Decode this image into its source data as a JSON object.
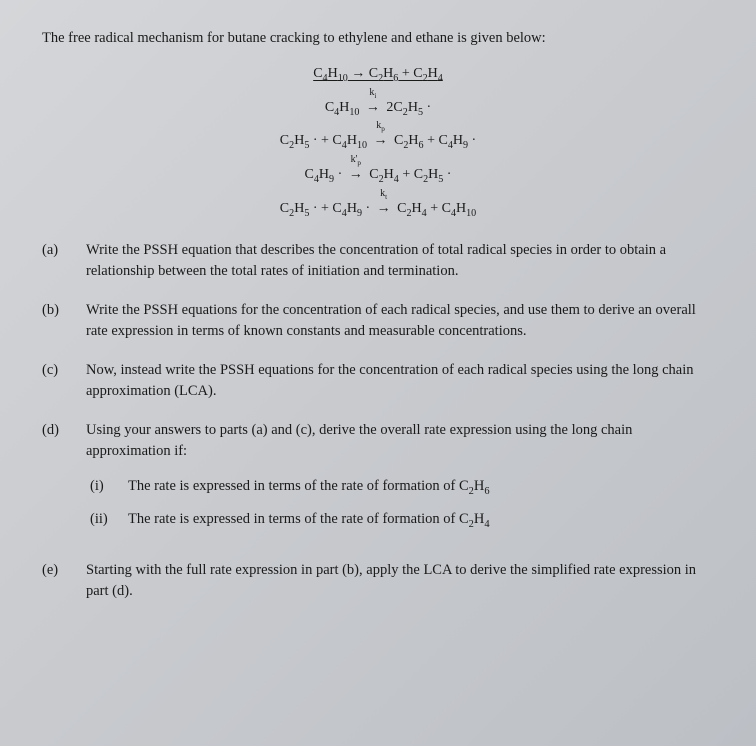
{
  "intro": "The free radical mechanism for butane cracking to ethylene and ethane is given below:",
  "equations": {
    "overall": "C₄H₁₀ → C₂H₆ + C₂H₄",
    "step1_left": "C₄H₁₀",
    "step1_k": "kᵢ",
    "step1_right": "2C₂H₅ ·",
    "step2_left": "C₂H₅ · + C₄H₁₀",
    "step2_k": "kₚ",
    "step2_right": "C₂H₆ + C₄H₉ ·",
    "step3_left": "C₄H₉ ·",
    "step3_k": "k'ₚ",
    "step3_right": "C₂H₄ + C₂H₅ ·",
    "step4_left": "C₂H₅ · + C₄H₉ ·",
    "step4_k": "kₜ",
    "step4_right": "C₂H₄ + C₄H₁₀"
  },
  "parts": {
    "a": {
      "label": "(a)",
      "text": "Write the PSSH equation that describes the concentration of total radical species in order to obtain a relationship between the total rates of initiation and termination."
    },
    "b": {
      "label": "(b)",
      "text": "Write the PSSH equations for the concentration of each radical species, and use them to derive an overall rate expression in terms of known constants and measurable concentrations."
    },
    "c": {
      "label": "(c)",
      "text": "Now, instead write the PSSH equations for the concentration of each radical species using the long chain approximation (LCA)."
    },
    "d": {
      "label": "(d)",
      "text": "Using your answers to parts (a) and (c), derive the overall rate expression using the long chain approximation if:",
      "i_label": "(i)",
      "i_text": "The rate is expressed in terms of the rate of formation of C₂H₆",
      "ii_label": "(ii)",
      "ii_text": "The rate is expressed in terms of the rate of formation of C₂H₄"
    },
    "e": {
      "label": "(e)",
      "text": "Starting with the full rate expression in part (b), apply the LCA to derive the simplified rate expression in part (d)."
    }
  }
}
